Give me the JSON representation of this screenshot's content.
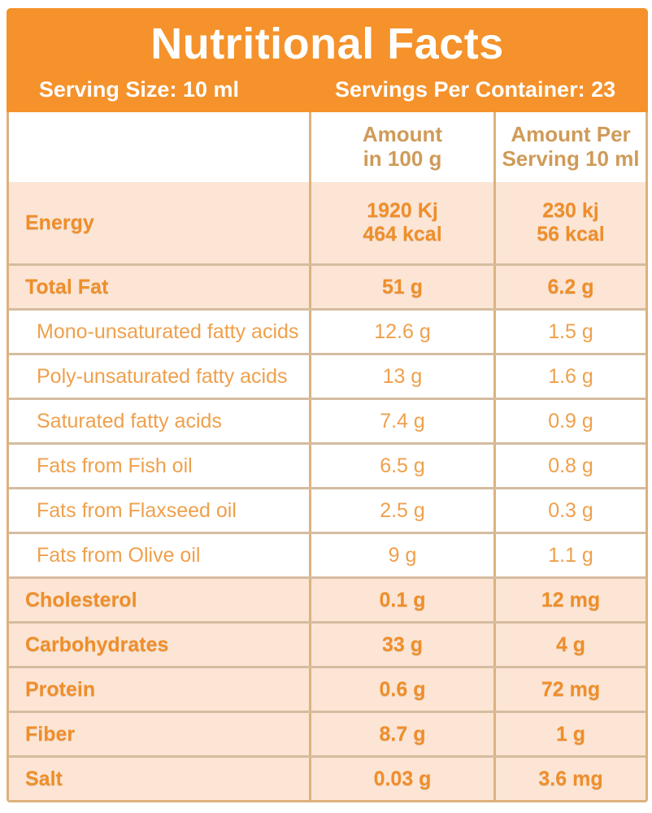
{
  "header": {
    "title": "Nutritional Facts",
    "serving_size": "Serving Size: 10 ml",
    "servings_per_container": "Servings Per Container: 23"
  },
  "table": {
    "columns": [
      "",
      "Amount\nin 100 g",
      "Amount Per\nServing 10 ml"
    ],
    "rows": [
      {
        "label": "Energy",
        "amount_100g": "1920 Kj\n464 kcal",
        "amount_per_serving": "230 kj\n56 kcal",
        "emphasis": true,
        "tall": true
      },
      {
        "label": "Total Fat",
        "amount_100g": "51 g",
        "amount_per_serving": "6.2 g",
        "emphasis": true
      },
      {
        "label": "Mono-unsaturated fatty acids",
        "amount_100g": "12.6 g",
        "amount_per_serving": "1.5 g",
        "emphasis": false
      },
      {
        "label": "Poly-unsaturated fatty acids",
        "amount_100g": "13 g",
        "amount_per_serving": "1.6 g",
        "emphasis": false
      },
      {
        "label": "Saturated fatty acids",
        "amount_100g": "7.4 g",
        "amount_per_serving": "0.9 g",
        "emphasis": false
      },
      {
        "label": "Fats from Fish oil",
        "amount_100g": "6.5 g",
        "amount_per_serving": "0.8 g",
        "emphasis": false
      },
      {
        "label": "Fats from Flaxseed oil",
        "amount_100g": "2.5 g",
        "amount_per_serving": "0.3 g",
        "emphasis": false
      },
      {
        "label": "Fats from Olive oil",
        "amount_100g": "9 g",
        "amount_per_serving": "1.1 g",
        "emphasis": false
      },
      {
        "label": "Cholesterol",
        "amount_100g": "0.1 g",
        "amount_per_serving": "12 mg",
        "emphasis": true
      },
      {
        "label": "Carbohydrates",
        "amount_100g": "33 g",
        "amount_per_serving": "4 g",
        "emphasis": true
      },
      {
        "label": "Protein",
        "amount_100g": "0.6 g",
        "amount_per_serving": "72 mg",
        "emphasis": true
      },
      {
        "label": "Fiber",
        "amount_100g": "8.7 g",
        "amount_per_serving": "1 g",
        "emphasis": true
      },
      {
        "label": "Salt",
        "amount_100g": "0.03 g",
        "amount_per_serving": "3.6 mg",
        "emphasis": true
      }
    ]
  },
  "colors": {
    "accent": "#F5922B",
    "title_text": "#FFFFFF",
    "row_highlight": "#FCE5D4",
    "label_text": "#EF8E2B",
    "sublabel_text": "#EFA04C",
    "column_header_text": "#CF9B58",
    "outer_border": "#DDB27E",
    "divider": "#D5BCA0"
  }
}
